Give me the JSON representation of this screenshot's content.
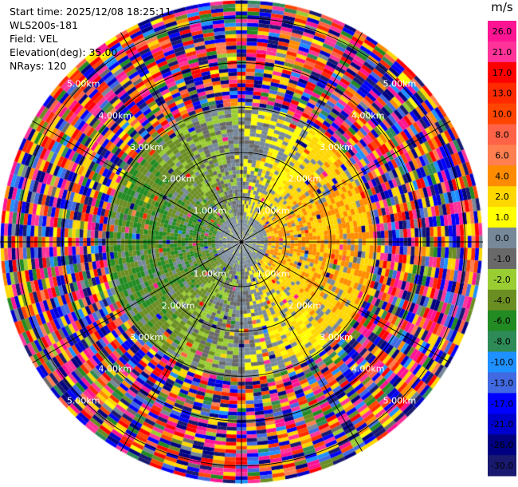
{
  "header": {
    "start_time": "Start time: 2025/12/08 18:25:11",
    "instrument": "WLS200s-181",
    "field": "Field: VEL",
    "elevation": "Elevation(deg): 35.00",
    "nrays": "NRays: 120"
  },
  "chart_data": {
    "type": "heatmap",
    "projection": "polar-ppi",
    "field": "VEL",
    "unit": "m/s",
    "n_rays": 120,
    "elevation_deg": 35.0,
    "range_rings_km": [
      1.0,
      2.0,
      3.0,
      4.0,
      5.0
    ],
    "ring_labels": [
      "1.00km",
      "2.00km",
      "3.00km",
      "4.00km",
      "5.00km"
    ],
    "max_range_km": 5.4,
    "spoke_angles_deg": [
      0,
      30,
      60,
      90,
      120,
      150,
      180,
      210,
      240,
      270,
      300,
      330
    ],
    "colorbar": {
      "ticks": [
        "26.0",
        "21.0",
        "17.0",
        "13.0",
        "10.0",
        "8.0",
        "6.0",
        "4.0",
        "2.0",
        "1.0",
        "0.0",
        "-1.0",
        "-2.0",
        "-4.0",
        "-6.0",
        "-8.0",
        "-10.0",
        "-13.0",
        "-17.0",
        "-21.0",
        "-26.0",
        "-30.0"
      ],
      "bins": [
        {
          "lo": 26,
          "hi": 30,
          "color": "#ff1493"
        },
        {
          "lo": 21,
          "hi": 26,
          "color": "#ff3399"
        },
        {
          "lo": 17,
          "hi": 21,
          "color": "#ff0000"
        },
        {
          "lo": 13,
          "hi": 17,
          "color": "#ff2a00"
        },
        {
          "lo": 10,
          "hi": 13,
          "color": "#ff4500"
        },
        {
          "lo": 8,
          "hi": 10,
          "color": "#ff6347"
        },
        {
          "lo": 6,
          "hi": 8,
          "color": "#ff7f50"
        },
        {
          "lo": 4,
          "hi": 6,
          "color": "#ff8c00"
        },
        {
          "lo": 2,
          "hi": 4,
          "color": "#ffd700"
        },
        {
          "lo": 1,
          "hi": 2,
          "color": "#ffff00"
        },
        {
          "lo": 0,
          "hi": 1,
          "color": "#778899"
        },
        {
          "lo": -1,
          "hi": 0,
          "color": "#696969"
        },
        {
          "lo": -2,
          "hi": -1,
          "color": "#9acd32"
        },
        {
          "lo": -4,
          "hi": -2,
          "color": "#6b8e23"
        },
        {
          "lo": -6,
          "hi": -4,
          "color": "#228b22"
        },
        {
          "lo": -8,
          "hi": -6,
          "color": "#2e8b57"
        },
        {
          "lo": -10,
          "hi": -8,
          "color": "#1e90ff"
        },
        {
          "lo": -13,
          "hi": -10,
          "color": "#4169e1"
        },
        {
          "lo": -17,
          "hi": -13,
          "color": "#0000ff"
        },
        {
          "lo": -21,
          "hi": -17,
          "color": "#0000cd"
        },
        {
          "lo": -26,
          "hi": -21,
          "color": "#000080"
        },
        {
          "lo": -30,
          "hi": -26,
          "color": "#191970"
        }
      ]
    },
    "pattern": {
      "inner_range_km": 0.6,
      "inner_values": "mostly 0.0 to 1.0 m/s",
      "east_sector_values": "about 2.0 to 6.0 m/s to ~3 km",
      "west_sector_values": "about -1.0 to -6.0 m/s to ~3 km",
      "outer_range": "noise over full color scale beyond ~3 km"
    }
  }
}
